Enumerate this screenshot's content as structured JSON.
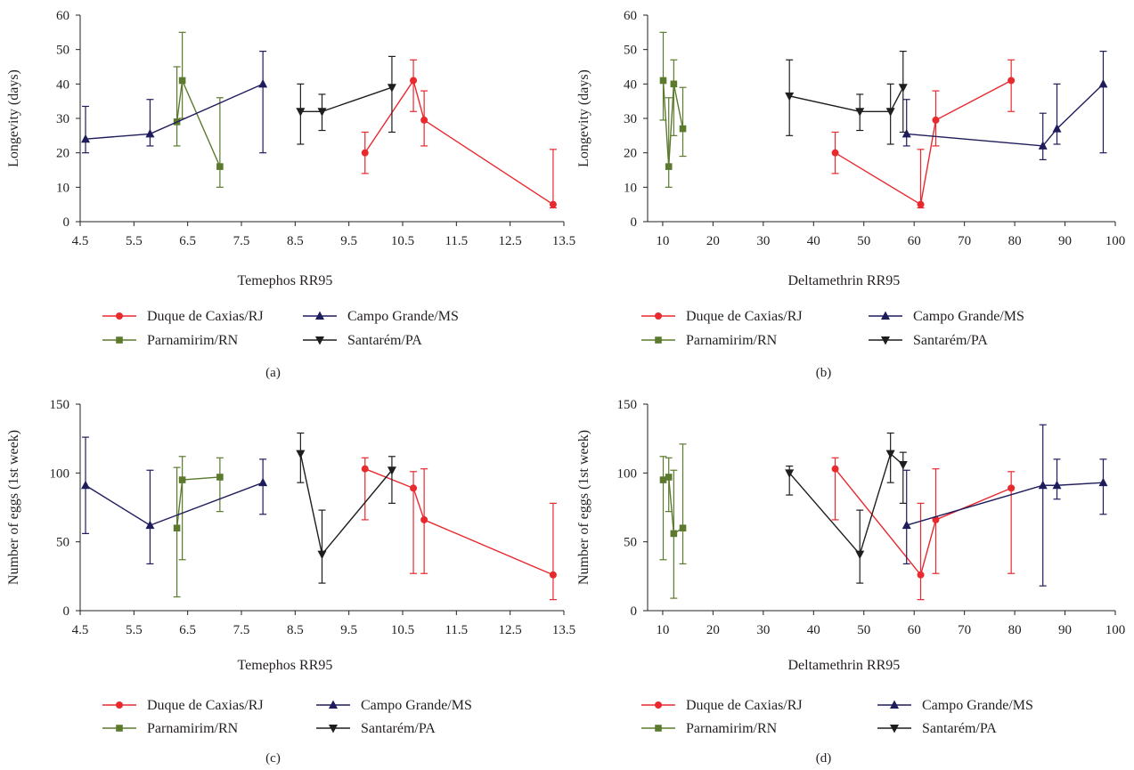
{
  "colors": {
    "duque": "#e8292e",
    "parnamirim": "#5b7a2e",
    "campo": "#1f1c5c",
    "santarem": "#1e1e1e",
    "axis": "#231f20"
  },
  "legend": {
    "duque": "Duque de Caxias/RJ",
    "campo": "Campo Grande/MS",
    "parnamirim": "Parnamirim/RN",
    "santarem": "Santarém/PA"
  },
  "chart_data": [
    {
      "panel": "(a)",
      "type": "line",
      "xlabel": "Temephos RR95",
      "ylabel": "Longevity (days)",
      "xlim": [
        4.5,
        13.5
      ],
      "xticks": [
        "4.5",
        "5.5",
        "6.5",
        "7.5",
        "8.5",
        "9.5",
        "10.5",
        "11.5",
        "12.5",
        "13.5"
      ],
      "ylim": [
        0,
        60
      ],
      "yticks": [
        "0",
        "10",
        "20",
        "30",
        "40",
        "50",
        "60"
      ],
      "legend_position": "bottom",
      "series": [
        {
          "name": "Duque de Caxias/RJ",
          "key": "duque",
          "marker": "circle",
          "points": [
            {
              "x": 9.8,
              "y": 20,
              "lo": 14,
              "hi": 26
            },
            {
              "x": 10.7,
              "y": 41,
              "lo": 32,
              "hi": 47
            },
            {
              "x": 10.9,
              "y": 29.5,
              "lo": 22,
              "hi": 38
            },
            {
              "x": 13.3,
              "y": 5,
              "lo": 4,
              "hi": 21
            }
          ]
        },
        {
          "name": "Parnamirim/RN",
          "key": "parnamirim",
          "marker": "square",
          "points": [
            {
              "x": 6.3,
              "y": 29,
              "lo": 22,
              "hi": 45
            },
            {
              "x": 6.4,
              "y": 41,
              "lo": 30,
              "hi": 55
            },
            {
              "x": 7.1,
              "y": 16,
              "lo": 10,
              "hi": 36
            }
          ]
        },
        {
          "name": "Campo Grande/MS",
          "key": "campo",
          "marker": "triangle-up",
          "points": [
            {
              "x": 4.6,
              "y": 24,
              "lo": 20,
              "hi": 33.5
            },
            {
              "x": 5.8,
              "y": 25.5,
              "lo": 22,
              "hi": 35.5
            },
            {
              "x": 7.9,
              "y": 40,
              "lo": 20,
              "hi": 49.5
            }
          ]
        },
        {
          "name": "Santarém/PA",
          "key": "santarem",
          "marker": "triangle-down",
          "points": [
            {
              "x": 8.6,
              "y": 32,
              "lo": 22.5,
              "hi": 40
            },
            {
              "x": 9.0,
              "y": 32,
              "lo": 26.5,
              "hi": 37
            },
            {
              "x": 10.3,
              "y": 39,
              "lo": 26,
              "hi": 48
            }
          ]
        }
      ]
    },
    {
      "panel": "(b)",
      "type": "line",
      "xlabel": "Deltamethrin RR95",
      "ylabel": "Longevity (days)",
      "xlim": [
        7,
        100
      ],
      "xticks": [
        "10",
        "20",
        "30",
        "40",
        "50",
        "60",
        "70",
        "80",
        "90",
        "100"
      ],
      "ylim": [
        0,
        60
      ],
      "yticks": [
        "0",
        "10",
        "20",
        "30",
        "40",
        "50",
        "60"
      ],
      "legend_position": "bottom",
      "series": [
        {
          "name": "Duque de Caxias/RJ",
          "key": "duque",
          "marker": "circle",
          "points": [
            {
              "x": 44.3,
              "y": 20,
              "lo": 14,
              "hi": 26
            },
            {
              "x": 61.3,
              "y": 5,
              "lo": 4,
              "hi": 21
            },
            {
              "x": 64.3,
              "y": 29.5,
              "lo": 22,
              "hi": 38
            },
            {
              "x": 79.3,
              "y": 41,
              "lo": 32,
              "hi": 47
            }
          ]
        },
        {
          "name": "Parnamirim/RN",
          "key": "parnamirim",
          "marker": "square",
          "points": [
            {
              "x": 10.1,
              "y": 41,
              "lo": 29.5,
              "hi": 55
            },
            {
              "x": 11.2,
              "y": 16,
              "lo": 10,
              "hi": 36
            },
            {
              "x": 12.2,
              "y": 40,
              "lo": 25,
              "hi": 47
            },
            {
              "x": 14.0,
              "y": 27,
              "lo": 19,
              "hi": 39
            }
          ]
        },
        {
          "name": "Campo Grande/MS",
          "key": "campo",
          "marker": "triangle-up",
          "points": [
            {
              "x": 58.5,
              "y": 25.5,
              "lo": 22,
              "hi": 35.5
            },
            {
              "x": 85.6,
              "y": 22,
              "lo": 18,
              "hi": 31.5
            },
            {
              "x": 88.4,
              "y": 27,
              "lo": 22.5,
              "hi": 40
            },
            {
              "x": 97.6,
              "y": 40,
              "lo": 20,
              "hi": 49.5
            }
          ]
        },
        {
          "name": "Santarém/PA",
          "key": "santarem",
          "marker": "triangle-down",
          "points": [
            {
              "x": 35.2,
              "y": 36.5,
              "lo": 25,
              "hi": 47
            },
            {
              "x": 49.2,
              "y": 32,
              "lo": 26.5,
              "hi": 37
            },
            {
              "x": 55.3,
              "y": 32,
              "lo": 22.5,
              "hi": 40
            },
            {
              "x": 57.8,
              "y": 39,
              "lo": 26,
              "hi": 49.5
            }
          ]
        }
      ]
    },
    {
      "panel": "(c)",
      "type": "line",
      "xlabel": "Temephos RR95",
      "ylabel": "Number of eggs (1st week)",
      "xlim": [
        4.5,
        13.5
      ],
      "xticks": [
        "4.5",
        "5.5",
        "6.5",
        "7.5",
        "8.5",
        "9.5",
        "10.5",
        "11.5",
        "12.5",
        "13.5"
      ],
      "ylim": [
        0,
        150
      ],
      "yticks": [
        "0",
        "50",
        "100",
        "150"
      ],
      "legend_position": "bottom",
      "series": [
        {
          "name": "Duque de Caxias/RJ",
          "key": "duque",
          "marker": "circle",
          "points": [
            {
              "x": 9.8,
              "y": 103,
              "lo": 66,
              "hi": 111
            },
            {
              "x": 10.7,
              "y": 89,
              "lo": 27,
              "hi": 101
            },
            {
              "x": 10.9,
              "y": 66,
              "lo": 27,
              "hi": 103
            },
            {
              "x": 13.3,
              "y": 26,
              "lo": 8,
              "hi": 78
            }
          ]
        },
        {
          "name": "Parnamirim/RN",
          "key": "parnamirim",
          "marker": "square",
          "points": [
            {
              "x": 6.3,
              "y": 60,
              "lo": 10,
              "hi": 104
            },
            {
              "x": 6.4,
              "y": 95,
              "lo": 37,
              "hi": 112
            },
            {
              "x": 7.1,
              "y": 97,
              "lo": 72,
              "hi": 111
            }
          ]
        },
        {
          "name": "Campo Grande/MS",
          "key": "campo",
          "marker": "triangle-up",
          "points": [
            {
              "x": 4.6,
              "y": 91,
              "lo": 56,
              "hi": 126
            },
            {
              "x": 5.8,
              "y": 62,
              "lo": 34,
              "hi": 102
            },
            {
              "x": 7.9,
              "y": 93,
              "lo": 70,
              "hi": 110
            }
          ]
        },
        {
          "name": "Santarém/PA",
          "key": "santarem",
          "marker": "triangle-down",
          "points": [
            {
              "x": 8.6,
              "y": 114,
              "lo": 93,
              "hi": 129
            },
            {
              "x": 9.0,
              "y": 41,
              "lo": 20,
              "hi": 73
            },
            {
              "x": 10.3,
              "y": 102,
              "lo": 78,
              "hi": 112
            }
          ]
        }
      ]
    },
    {
      "panel": "(d)",
      "type": "line",
      "xlabel": "Deltamethrin RR95",
      "ylabel": "Number of eggs (1st week)",
      "xlim": [
        7,
        100
      ],
      "xticks": [
        "10",
        "20",
        "30",
        "40",
        "50",
        "60",
        "70",
        "80",
        "90",
        "100"
      ],
      "ylim": [
        0,
        150
      ],
      "yticks": [
        "0",
        "50",
        "100",
        "150"
      ],
      "legend_position": "bottom",
      "series": [
        {
          "name": "Duque de Caxias/RJ",
          "key": "duque",
          "marker": "circle",
          "points": [
            {
              "x": 44.3,
              "y": 103,
              "lo": 66,
              "hi": 111
            },
            {
              "x": 61.3,
              "y": 26,
              "lo": 8,
              "hi": 78
            },
            {
              "x": 64.3,
              "y": 66,
              "lo": 27,
              "hi": 103
            },
            {
              "x": 79.3,
              "y": 89,
              "lo": 27,
              "hi": 101
            }
          ]
        },
        {
          "name": "Parnamirim/RN",
          "key": "parnamirim",
          "marker": "square",
          "points": [
            {
              "x": 10.1,
              "y": 95,
              "lo": 37,
              "hi": 112
            },
            {
              "x": 11.2,
              "y": 97,
              "lo": 72,
              "hi": 111
            },
            {
              "x": 12.2,
              "y": 56,
              "lo": 9,
              "hi": 102
            },
            {
              "x": 14.0,
              "y": 60,
              "lo": 34,
              "hi": 121
            }
          ]
        },
        {
          "name": "Campo Grande/MS",
          "key": "campo",
          "marker": "triangle-up",
          "points": [
            {
              "x": 58.5,
              "y": 62,
              "lo": 34,
              "hi": 102
            },
            {
              "x": 85.6,
              "y": 91,
              "lo": 18,
              "hi": 135
            },
            {
              "x": 88.4,
              "y": 91,
              "lo": 81,
              "hi": 110
            },
            {
              "x": 97.6,
              "y": 93,
              "lo": 70,
              "hi": 110
            }
          ]
        },
        {
          "name": "Santarém/PA",
          "key": "santarem",
          "marker": "triangle-down",
          "points": [
            {
              "x": 35.2,
              "y": 100,
              "lo": 84,
              "hi": 105
            },
            {
              "x": 49.2,
              "y": 41,
              "lo": 20,
              "hi": 73
            },
            {
              "x": 55.3,
              "y": 114,
              "lo": 93,
              "hi": 129
            },
            {
              "x": 57.8,
              "y": 106,
              "lo": 78,
              "hi": 115
            }
          ]
        }
      ]
    }
  ]
}
